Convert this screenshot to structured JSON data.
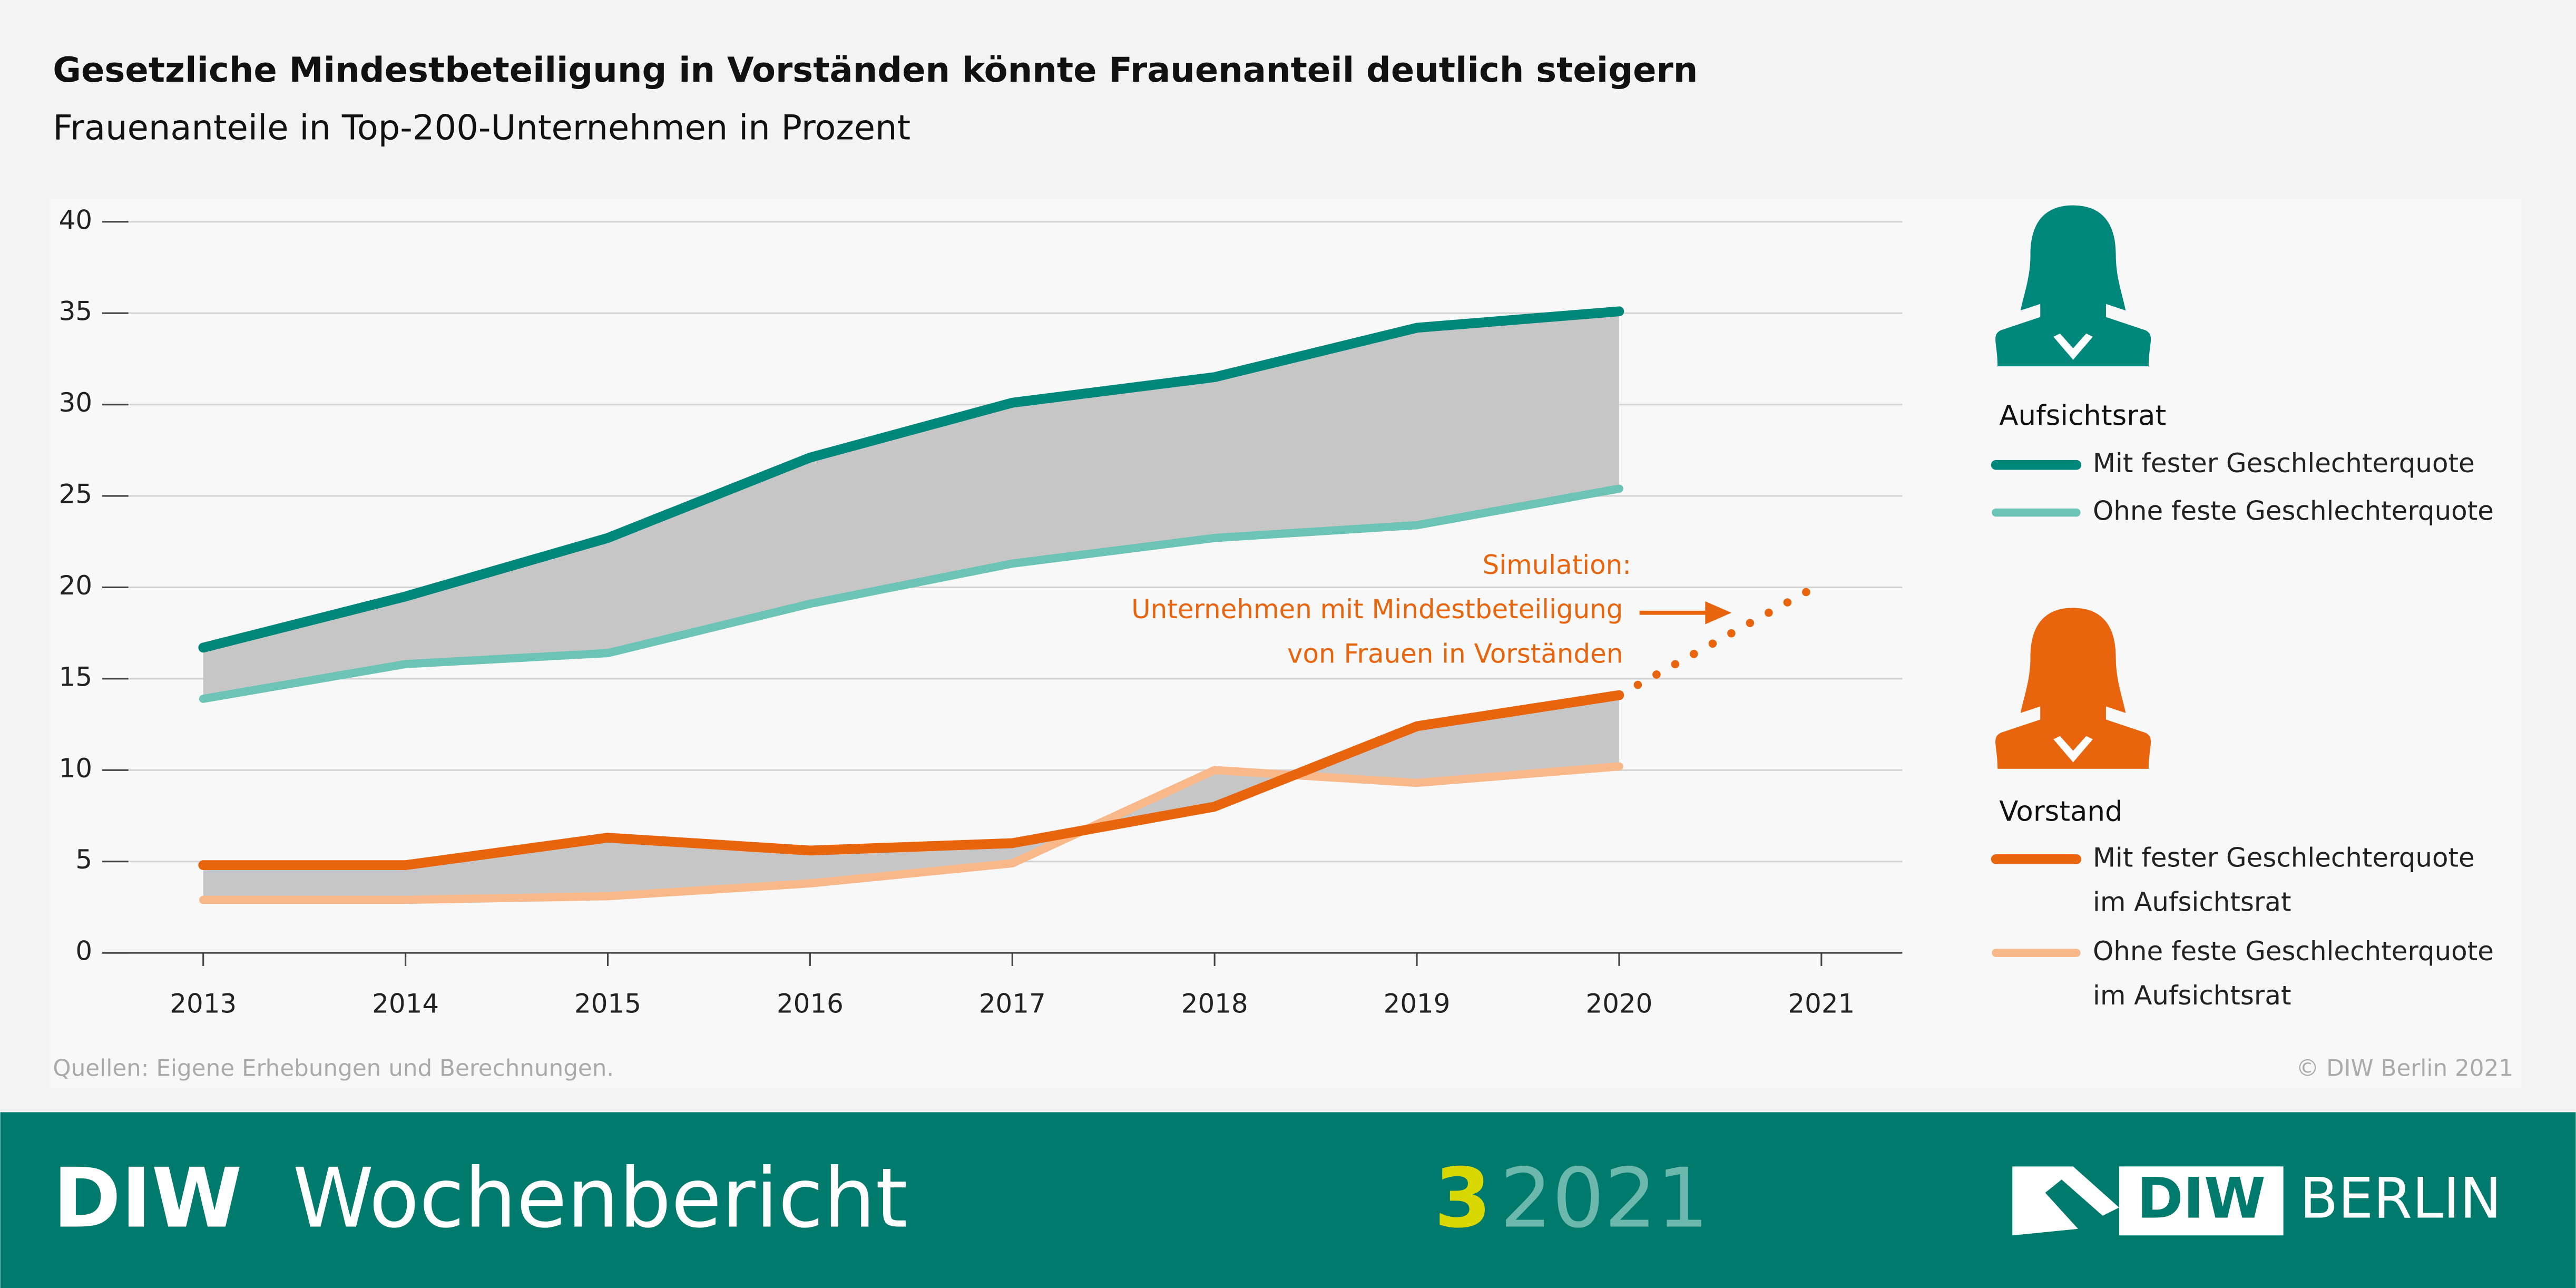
{
  "chart_data": {
    "type": "line",
    "title": "Gesetzliche Mindestbeteiligung in Vorständen könnte Frauenanteil deutlich steigern",
    "subtitle": "Frauenanteile in Top-200-Unternehmen in Prozent",
    "x": [
      2013,
      2014,
      2015,
      2016,
      2017,
      2018,
      2019,
      2020,
      2021
    ],
    "xlim": [
      2012.5,
      2021.4
    ],
    "xticks": [
      2013,
      2014,
      2015,
      2016,
      2017,
      2018,
      2019,
      2020,
      2021
    ],
    "ylim": [
      0,
      40
    ],
    "yticks": [
      0,
      5,
      10,
      15,
      20,
      25,
      30,
      35,
      40
    ],
    "grid": true,
    "band_color": "#c6c6c6",
    "groups": [
      {
        "title": "Aufsichtsrat",
        "icon_color": "#00877b",
        "series": [
          {
            "name": "Mit fester Geschlechterquote",
            "color": "#00877b",
            "values": [
              16.7,
              19.5,
              22.7,
              27.1,
              30.1,
              31.5,
              34.2,
              35.1,
              null
            ]
          },
          {
            "name": "Ohne feste Geschlechterquote",
            "color": "#6cc4b6",
            "values": [
              13.9,
              15.8,
              16.4,
              19.1,
              21.3,
              22.7,
              23.4,
              25.4,
              null
            ]
          }
        ]
      },
      {
        "title": "Vorstand",
        "icon_color": "#e8650e",
        "series": [
          {
            "name": "Mit fester Geschlechterquote\nim Aufsichtsrat",
            "color": "#e8650e",
            "values": [
              4.8,
              4.8,
              6.3,
              5.6,
              6.0,
              8.0,
              12.4,
              14.1,
              null
            ]
          },
          {
            "name": "Ohne feste Geschlechterquote\nim Aufsichtsrat",
            "color": "#f8b88a",
            "values": [
              2.9,
              2.9,
              3.1,
              3.8,
              4.9,
              10.0,
              9.3,
              10.2,
              null
            ]
          }
        ]
      }
    ],
    "simulation": {
      "color": "#e8650e",
      "values": [
        null,
        null,
        null,
        null,
        null,
        null,
        null,
        14.1,
        20.2
      ],
      "annotation": [
        "Simulation:",
        "Unternehmen mit Mindestbeteiligung",
        "von Frauen in Vorständen"
      ]
    },
    "source": "Quellen: Eigene Erhebungen und Berechnungen.",
    "copyright": "© DIW Berlin 2021"
  },
  "footer": {
    "brand": "DIW",
    "publication": "Wochenbericht",
    "issue": "3",
    "year": "2021",
    "logo_left": "DIW",
    "logo_right": "BERLIN"
  }
}
